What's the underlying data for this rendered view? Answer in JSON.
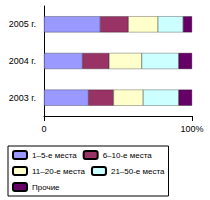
{
  "chart_data": {
    "type": "bar",
    "orientation": "horizontal",
    "stacked": true,
    "grid": false,
    "legend": "bottom",
    "categories": [
      "2003 г.",
      "2004 г.",
      "2005 г."
    ],
    "series": [
      {
        "name": "1–5-е места",
        "color": "#9999ff",
        "values": [
          30,
          26,
          38
        ]
      },
      {
        "name": "6–10-е места",
        "color": "#993366",
        "values": [
          17,
          18,
          19
        ]
      },
      {
        "name": "11–20-е места",
        "color": "#ffffcc",
        "values": [
          20,
          22,
          20
        ]
      },
      {
        "name": "21–50-е места",
        "color": "#ccffff",
        "values": [
          24,
          25,
          17
        ]
      },
      {
        "name": "Прочие",
        "color": "#660066",
        "values": [
          9,
          9,
          6
        ]
      }
    ],
    "xlim": [
      0,
      100
    ],
    "xticks": [
      0,
      {
        "value": 100,
        "label": "100%"
      }
    ]
  }
}
